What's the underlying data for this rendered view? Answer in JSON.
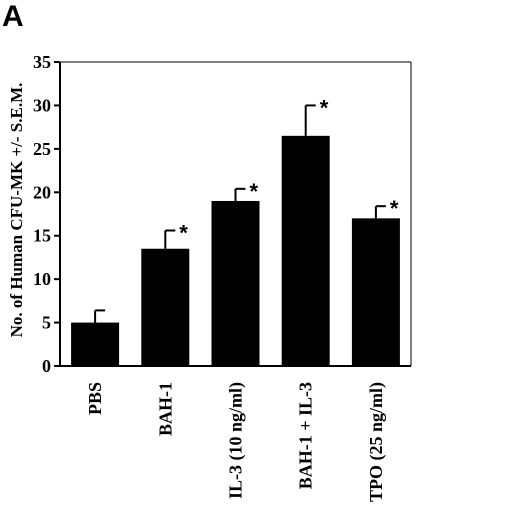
{
  "panel_label": "A",
  "chart_data": {
    "type": "bar",
    "title": "",
    "xlabel": "",
    "ylabel": "No. of Human CFU-MK +/- S.E.M.",
    "ylim": [
      0,
      35
    ],
    "yticks": [
      0,
      5,
      10,
      15,
      20,
      25,
      30,
      35
    ],
    "categories": [
      "PBS",
      "BAH-1",
      "IL-3  (10 ng/ml)",
      "BAH-1 + IL-3",
      "TPO (25 ng/ml)"
    ],
    "values": [
      5.0,
      13.5,
      19.0,
      26.5,
      17.0
    ],
    "errors": [
      1.4,
      2.1,
      1.4,
      3.5,
      1.4
    ],
    "significance": [
      "",
      "*",
      "*",
      "*",
      "*"
    ],
    "bar_color": "#000000",
    "grid": false
  }
}
